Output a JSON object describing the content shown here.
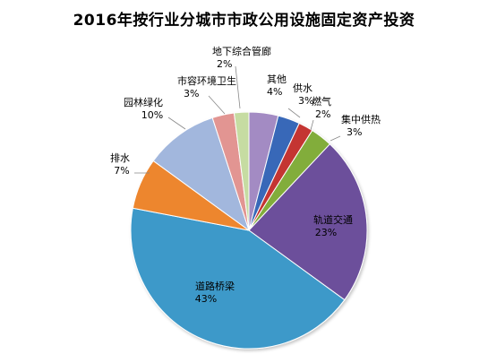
{
  "chart_data": {
    "type": "pie",
    "title": "2016年按行业分城市市政公用设施固定资产投资",
    "slices": [
      {
        "name": "其他",
        "value": 4,
        "label": "4%",
        "color": "#a38bc3"
      },
      {
        "name": "供水",
        "value": 3,
        "label": "3%",
        "color": "#3867b8"
      },
      {
        "name": "燃气",
        "value": 2,
        "label": "2%",
        "color": "#c43631"
      },
      {
        "name": "集中供热",
        "value": 3,
        "label": "3%",
        "color": "#82ad3b"
      },
      {
        "name": "轨道交通",
        "value": 23,
        "label": "23%",
        "color": "#6c4f9b"
      },
      {
        "name": "道路桥梁",
        "value": 43,
        "label": "43%",
        "color": "#3d99c9"
      },
      {
        "name": "排水",
        "value": 7,
        "label": "7%",
        "color": "#ed862f"
      },
      {
        "name": "园林绿化",
        "value": 10,
        "label": "10%",
        "color": "#a2b7dd"
      },
      {
        "name": "市容环境卫生",
        "value": 3,
        "label": "3%",
        "color": "#e29592"
      },
      {
        "name": "地下综合管廊",
        "value": 2,
        "label": "2%",
        "color": "#c6dca2"
      }
    ],
    "legend": "none",
    "start_angle": "top, clockwise"
  }
}
